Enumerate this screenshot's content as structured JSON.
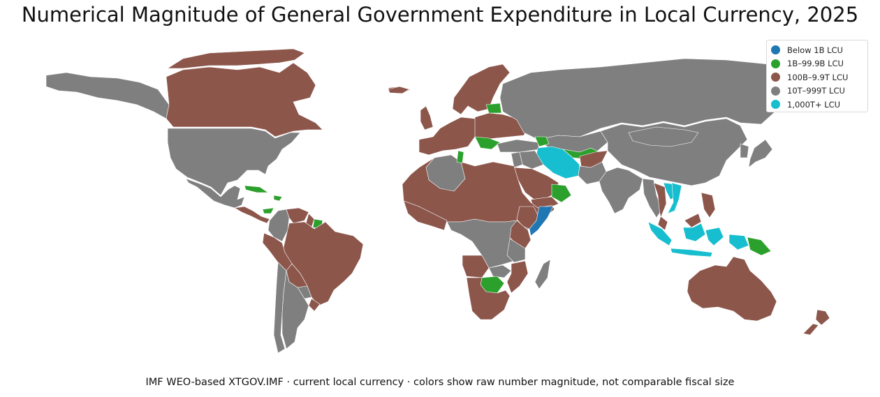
{
  "title": "Numerical Magnitude of General Government Expenditure in Local Currency, 2025",
  "caption": "IMF WEO-based XTGOV.IMF · current local currency · colors show raw number magnitude, not comparable fiscal size",
  "legend": {
    "placement": "top-right",
    "items": [
      {
        "label": "Below 1B LCU",
        "color": "#1f77b4"
      },
      {
        "label": "1B–99.9B LCU",
        "color": "#2ca02c"
      },
      {
        "label": "100B–9.9T LCU",
        "color": "#8c564b"
      },
      {
        "label": "10T–999T LCU",
        "color": "#7f7f7f"
      },
      {
        "label": "1,000T+ LCU",
        "color": "#17becf"
      }
    ]
  },
  "regions": [
    {
      "name": "Canada",
      "class": 2
    },
    {
      "name": "Greenland",
      "class": 2
    },
    {
      "name": "United States",
      "class": 3
    },
    {
      "name": "Alaska",
      "class": 3
    },
    {
      "name": "Mexico",
      "class": 3
    },
    {
      "name": "Central America",
      "class": 2
    },
    {
      "name": "Caribbean",
      "class": 1
    },
    {
      "name": "Guyana",
      "class": 2
    },
    {
      "name": "Suriname",
      "class": 1
    },
    {
      "name": "Colombia",
      "class": 3
    },
    {
      "name": "Venezuela",
      "class": 2
    },
    {
      "name": "Brazil",
      "class": 2
    },
    {
      "name": "Peru",
      "class": 2
    },
    {
      "name": "Bolivia",
      "class": 2
    },
    {
      "name": "Argentina",
      "class": 3
    },
    {
      "name": "Chile",
      "class": 3
    },
    {
      "name": "Paraguay",
      "class": 3
    },
    {
      "name": "Uruguay",
      "class": 2
    },
    {
      "name": "Iceland",
      "class": 2
    },
    {
      "name": "United Kingdom",
      "class": 2
    },
    {
      "name": "Scandinavia",
      "class": 2
    },
    {
      "name": "Western Europe",
      "class": 2
    },
    {
      "name": "Eastern Europe",
      "class": 2
    },
    {
      "name": "Balkans",
      "class": 1
    },
    {
      "name": "Baltics",
      "class": 1
    },
    {
      "name": "Russia",
      "class": 3
    },
    {
      "name": "Kazakhstan",
      "class": 3
    },
    {
      "name": "Turkey",
      "class": 3
    },
    {
      "name": "Caucasus",
      "class": 1
    },
    {
      "name": "Central Asia",
      "class": 1
    },
    {
      "name": "Iran",
      "class": 4
    },
    {
      "name": "Iraq",
      "class": 3
    },
    {
      "name": "Syria",
      "class": 3
    },
    {
      "name": "Saudi Arabia",
      "class": 2
    },
    {
      "name": "Yemen",
      "class": 2
    },
    {
      "name": "Oman",
      "class": 1
    },
    {
      "name": "Afghanistan",
      "class": 2
    },
    {
      "name": "Pakistan",
      "class": 3
    },
    {
      "name": "India",
      "class": 3
    },
    {
      "name": "China",
      "class": 3
    },
    {
      "name": "Mongolia",
      "class": 3
    },
    {
      "name": "Myanmar",
      "class": 3
    },
    {
      "name": "Thailand",
      "class": 2
    },
    {
      "name": "Vietnam",
      "class": 4
    },
    {
      "name": "Laos",
      "class": 4
    },
    {
      "name": "Malaysia",
      "class": 2
    },
    {
      "name": "Indonesia",
      "class": 4
    },
    {
      "name": "Philippines",
      "class": 2
    },
    {
      "name": "Papua New Guinea",
      "class": 1
    },
    {
      "name": "Japan",
      "class": 3
    },
    {
      "name": "Korea",
      "class": 3
    },
    {
      "name": "Australia",
      "class": 2
    },
    {
      "name": "New Zealand",
      "class": 2
    },
    {
      "name": "North Africa",
      "class": 2
    },
    {
      "name": "Algeria",
      "class": 3
    },
    {
      "name": "Tunisia",
      "class": 1
    },
    {
      "name": "West Africa",
      "class": 2
    },
    {
      "name": "Central Africa",
      "class": 3
    },
    {
      "name": "East Africa",
      "class": 2
    },
    {
      "name": "Somalia",
      "class": 0
    },
    {
      "name": "Ethiopia",
      "class": 2
    },
    {
      "name": "Tanzania",
      "class": 3
    },
    {
      "name": "Angola",
      "class": 2
    },
    {
      "name": "Zambia",
      "class": 3
    },
    {
      "name": "Botswana",
      "class": 1
    },
    {
      "name": "South Africa",
      "class": 2
    },
    {
      "name": "Mozambique",
      "class": 2
    },
    {
      "name": "Madagascar",
      "class": 3
    }
  ]
}
